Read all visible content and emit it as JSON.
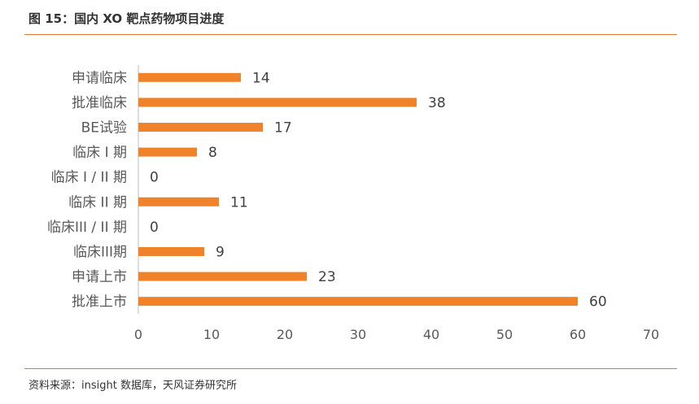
{
  "header": {
    "title": "图 15：国内 XO 靶点药物项目进度"
  },
  "footer": {
    "source": "资料来源：insight 数据库，天风证券研究所"
  },
  "colors": {
    "bar": "#f0832a",
    "rule": "#e07a2a",
    "axis": "#bfbfbf"
  },
  "chart_data": {
    "type": "bar",
    "orientation": "horizontal",
    "categories": [
      "申请临床",
      "批准临床",
      "BE试验",
      "临床 I 期",
      "临床 I / II 期",
      "临床 II 期",
      "临床III / II 期",
      "临床III期",
      "申请上市",
      "批准上市"
    ],
    "values": [
      14,
      38,
      17,
      8,
      0,
      11,
      0,
      9,
      23,
      60
    ],
    "xlim": [
      0,
      70
    ],
    "xticks": [
      0,
      10,
      20,
      30,
      40,
      50,
      60,
      70
    ],
    "grid": false,
    "legend": "none",
    "data_labels": true
  }
}
